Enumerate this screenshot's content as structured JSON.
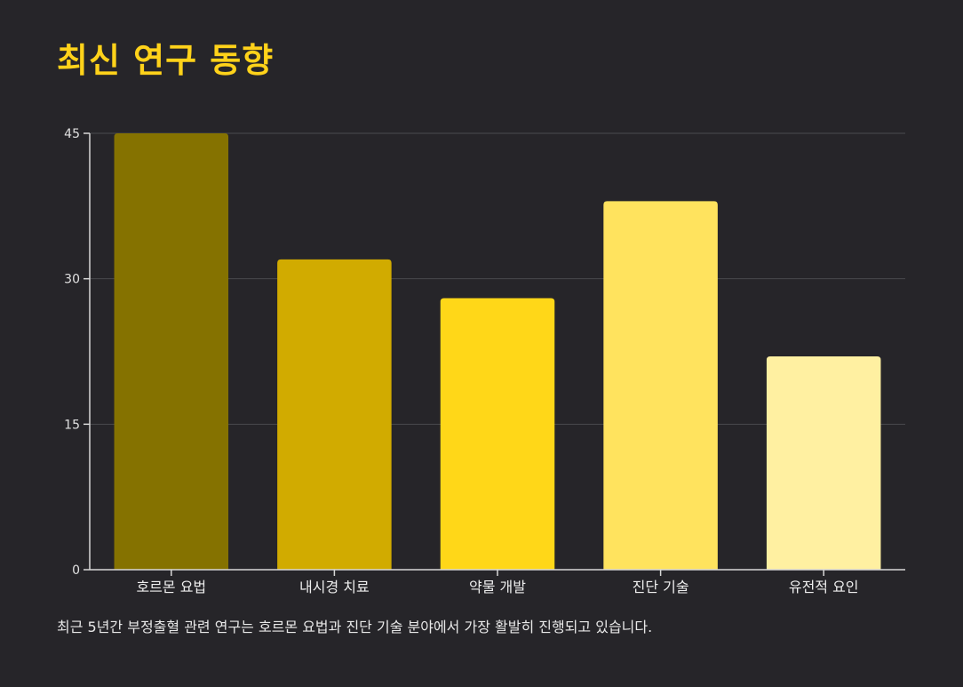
{
  "page": {
    "title": "최신 연구 동향",
    "caption": "최근 5년간 부정출혈 관련 연구는 호르몬 요법과 진단 기술 분야에서 가장 활발히 진행되고 있습니다."
  },
  "chart_data": {
    "type": "bar",
    "categories": [
      "호르몬 요법",
      "내시경 치료",
      "약물 개발",
      "진단 기술",
      "유전적 요인"
    ],
    "values": [
      45,
      32,
      28,
      38,
      22
    ],
    "colors": [
      "#857200",
      "#D1AB00",
      "#FFD718",
      "#FFE35E",
      "#FFF0A1"
    ],
    "yticks": [
      0,
      15,
      30,
      45
    ],
    "ylim": [
      0,
      45
    ],
    "grid": true,
    "legend": "none",
    "background": "#262529",
    "axis_color": "#D8D8D8",
    "grid_color": "#4A4A4E"
  }
}
